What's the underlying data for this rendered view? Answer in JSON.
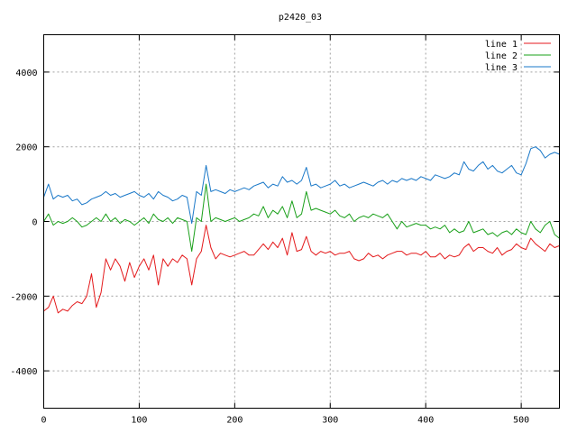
{
  "chart_data": {
    "type": "line",
    "title": "p2420_03",
    "xlim": [
      0,
      540
    ],
    "ylim": [
      -5000,
      5000
    ],
    "xticks": [
      0,
      100,
      200,
      300,
      400,
      500
    ],
    "yticks": [
      -4000,
      -2000,
      0,
      2000,
      4000
    ],
    "grid": true,
    "legend_position": "top-right",
    "series": [
      {
        "name": "line 1",
        "color": "#e41a1c",
        "x": [
          0,
          5,
          10,
          15,
          20,
          25,
          30,
          35,
          40,
          45,
          50,
          55,
          60,
          65,
          70,
          75,
          80,
          85,
          90,
          95,
          100,
          105,
          110,
          115,
          120,
          125,
          130,
          135,
          140,
          145,
          150,
          155,
          160,
          165,
          170,
          175,
          180,
          185,
          190,
          195,
          200,
          205,
          210,
          215,
          220,
          225,
          230,
          235,
          240,
          245,
          250,
          255,
          260,
          265,
          270,
          275,
          280,
          285,
          290,
          295,
          300,
          305,
          310,
          315,
          320,
          325,
          330,
          335,
          340,
          345,
          350,
          355,
          360,
          365,
          370,
          375,
          380,
          385,
          390,
          395,
          400,
          405,
          410,
          415,
          420,
          425,
          430,
          435,
          440,
          445,
          450,
          455,
          460,
          465,
          470,
          475,
          480,
          485,
          490,
          495,
          500,
          505,
          510,
          515,
          520,
          525,
          530,
          535,
          540
        ],
        "y": [
          -2400,
          -2300,
          -2000,
          -2450,
          -2350,
          -2400,
          -2250,
          -2150,
          -2200,
          -2000,
          -1400,
          -2300,
          -1900,
          -1000,
          -1300,
          -1000,
          -1200,
          -1600,
          -1100,
          -1500,
          -1200,
          -1000,
          -1300,
          -900,
          -1700,
          -1000,
          -1200,
          -1000,
          -1100,
          -900,
          -1000,
          -1700,
          -1000,
          -800,
          -100,
          -700,
          -1000,
          -850,
          -900,
          -950,
          -900,
          -850,
          -800,
          -900,
          -900,
          -750,
          -600,
          -750,
          -550,
          -700,
          -450,
          -900,
          -300,
          -800,
          -750,
          -400,
          -800,
          -900,
          -800,
          -850,
          -800,
          -900,
          -850,
          -850,
          -800,
          -1000,
          -1050,
          -1000,
          -850,
          -950,
          -900,
          -1000,
          -900,
          -850,
          -800,
          -800,
          -900,
          -850,
          -850,
          -900,
          -800,
          -950,
          -950,
          -850,
          -1000,
          -900,
          -950,
          -900,
          -700,
          -600,
          -800,
          -700,
          -700,
          -800,
          -850,
          -700,
          -900,
          -800,
          -750,
          -600,
          -700,
          -750,
          -450,
          -600,
          -700,
          -800,
          -600,
          -700,
          -650
        ]
      },
      {
        "name": "line 2",
        "color": "#1aa01a",
        "x": [
          0,
          5,
          10,
          15,
          20,
          25,
          30,
          35,
          40,
          45,
          50,
          55,
          60,
          65,
          70,
          75,
          80,
          85,
          90,
          95,
          100,
          105,
          110,
          115,
          120,
          125,
          130,
          135,
          140,
          145,
          150,
          155,
          160,
          165,
          170,
          175,
          180,
          185,
          190,
          195,
          200,
          205,
          210,
          215,
          220,
          225,
          230,
          235,
          240,
          245,
          250,
          255,
          260,
          265,
          270,
          275,
          280,
          285,
          290,
          295,
          300,
          305,
          310,
          315,
          320,
          325,
          330,
          335,
          340,
          345,
          350,
          355,
          360,
          365,
          370,
          375,
          380,
          385,
          390,
          395,
          400,
          405,
          410,
          415,
          420,
          425,
          430,
          435,
          440,
          445,
          450,
          455,
          460,
          465,
          470,
          475,
          480,
          485,
          490,
          495,
          500,
          505,
          510,
          515,
          520,
          525,
          530,
          535,
          540
        ],
        "y": [
          0,
          200,
          -100,
          0,
          -50,
          0,
          100,
          0,
          -150,
          -100,
          0,
          100,
          0,
          200,
          0,
          100,
          -50,
          50,
          0,
          -100,
          0,
          100,
          -50,
          200,
          50,
          0,
          100,
          -50,
          100,
          50,
          0,
          -800,
          100,
          0,
          1000,
          0,
          100,
          50,
          0,
          50,
          100,
          0,
          50,
          100,
          200,
          150,
          400,
          100,
          300,
          200,
          400,
          100,
          550,
          100,
          200,
          800,
          300,
          350,
          300,
          250,
          200,
          300,
          150,
          100,
          200,
          0,
          100,
          150,
          100,
          200,
          150,
          100,
          200,
          0,
          -200,
          0,
          -150,
          -100,
          -50,
          -100,
          -100,
          -200,
          -150,
          -200,
          -100,
          -300,
          -200,
          -300,
          -250,
          0,
          -300,
          -250,
          -200,
          -350,
          -300,
          -400,
          -300,
          -250,
          -350,
          -200,
          -300,
          -350,
          0,
          -200,
          -300,
          -100,
          0,
          -350,
          -450
        ]
      },
      {
        "name": "line 3",
        "color": "#1a78c8",
        "x": [
          0,
          5,
          10,
          15,
          20,
          25,
          30,
          35,
          40,
          45,
          50,
          55,
          60,
          65,
          70,
          75,
          80,
          85,
          90,
          95,
          100,
          105,
          110,
          115,
          120,
          125,
          130,
          135,
          140,
          145,
          150,
          155,
          160,
          165,
          170,
          175,
          180,
          185,
          190,
          195,
          200,
          205,
          210,
          215,
          220,
          225,
          230,
          235,
          240,
          245,
          250,
          255,
          260,
          265,
          270,
          275,
          280,
          285,
          290,
          295,
          300,
          305,
          310,
          315,
          320,
          325,
          330,
          335,
          340,
          345,
          350,
          355,
          360,
          365,
          370,
          375,
          380,
          385,
          390,
          395,
          400,
          405,
          410,
          415,
          420,
          425,
          430,
          435,
          440,
          445,
          450,
          455,
          460,
          465,
          470,
          475,
          480,
          485,
          490,
          495,
          500,
          505,
          510,
          515,
          520,
          525,
          530,
          535,
          540
        ],
        "y": [
          650,
          1000,
          600,
          700,
          650,
          700,
          550,
          600,
          450,
          500,
          600,
          650,
          700,
          800,
          700,
          750,
          650,
          700,
          750,
          800,
          700,
          650,
          750,
          600,
          800,
          700,
          650,
          550,
          600,
          700,
          650,
          -50,
          800,
          700,
          1500,
          800,
          850,
          800,
          750,
          850,
          800,
          850,
          900,
          850,
          950,
          1000,
          1050,
          900,
          1000,
          950,
          1200,
          1050,
          1100,
          1000,
          1100,
          1450,
          950,
          1000,
          900,
          950,
          1000,
          1100,
          950,
          1000,
          900,
          950,
          1000,
          1050,
          1000,
          950,
          1050,
          1100,
          1000,
          1100,
          1050,
          1150,
          1100,
          1150,
          1100,
          1200,
          1150,
          1100,
          1250,
          1200,
          1150,
          1200,
          1300,
          1250,
          1600,
          1400,
          1350,
          1500,
          1600,
          1400,
          1500,
          1350,
          1300,
          1400,
          1500,
          1300,
          1250,
          1550,
          1950,
          2000,
          1900,
          1700,
          1800,
          1850,
          1800
        ]
      }
    ]
  }
}
